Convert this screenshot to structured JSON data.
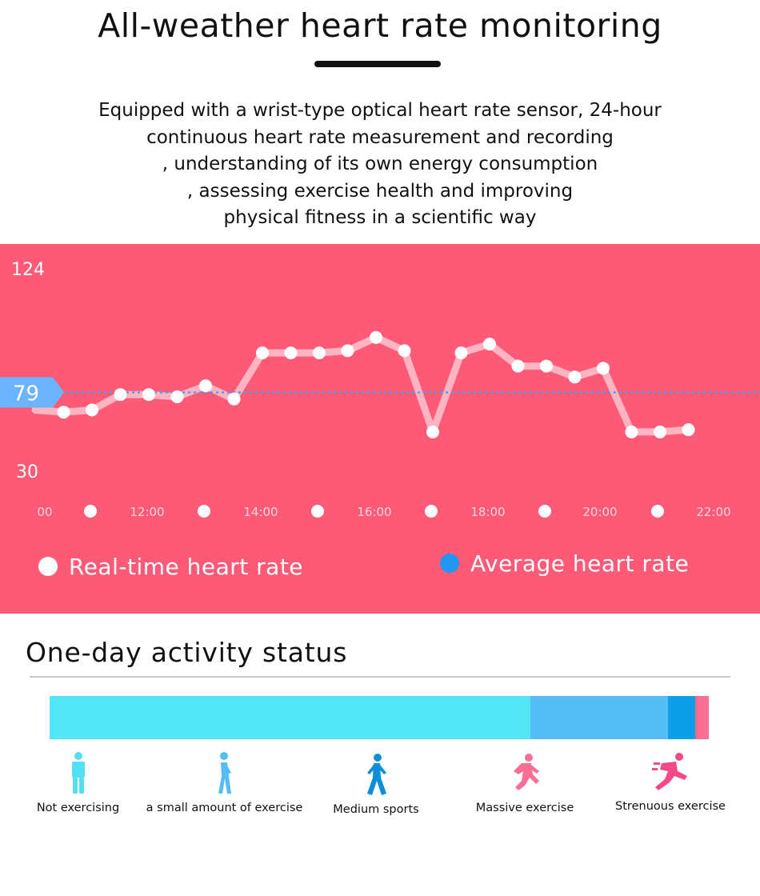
{
  "header": {
    "title": "All-weather heart rate monitoring",
    "description_lines": [
      "Equipped with a wrist-type optical heart rate sensor, 24-hour",
      "continuous heart rate measurement and recording",
      ", understanding of its own energy consumption",
      ", assessing exercise health and improving",
      "physical fitness in a scientific way"
    ]
  },
  "chart_data": {
    "type": "line",
    "y_tick_labels": [
      "124",
      "30"
    ],
    "ylim": [
      30,
      124
    ],
    "average_label": "79",
    "average_value": 79,
    "x_tick_labels": [
      "00",
      "12:00",
      "14:00",
      "16:00",
      "18:00",
      "20:00",
      "22:00"
    ],
    "series": [
      {
        "name": "Real-time heart rate",
        "color": "#ffffff",
        "values": [
          71,
          70,
          71,
          78,
          78,
          77,
          82,
          76,
          97,
          97,
          97,
          98,
          104,
          98,
          61,
          97,
          101,
          91,
          91,
          86,
          90,
          61,
          61,
          62
        ]
      }
    ],
    "average_series_name": "Average heart rate",
    "average_color": "#3fa1ff",
    "grid": false,
    "legend_position": "bottom"
  },
  "legend": {
    "realtime_label": "Real-time heart rate",
    "average_label": "Average heart rate",
    "realtime_color": "#ffffff",
    "average_color": "#2196f3"
  },
  "activity": {
    "title": "One-day activity status",
    "segments": [
      {
        "label": "Not exercising",
        "fraction": 0.729,
        "color": "#53e6f6",
        "icon": "standing-person-icon"
      },
      {
        "label": "a small amount of exercise",
        "fraction": 0.209,
        "color": "#54bdf5",
        "icon": "walking-person-icon"
      },
      {
        "label": "Medium sports",
        "fraction": 0.041,
        "color": "#0c9ee6",
        "icon": "brisk-walking-person-icon"
      },
      {
        "label": "Massive exercise",
        "fraction": 0.004,
        "color": "#fc6384",
        "icon": "running-person-icon"
      },
      {
        "label": "Strenuous exercise",
        "fraction": 0.017,
        "color": "#fb6f95",
        "icon": "sprinting-person-icon"
      }
    ]
  }
}
